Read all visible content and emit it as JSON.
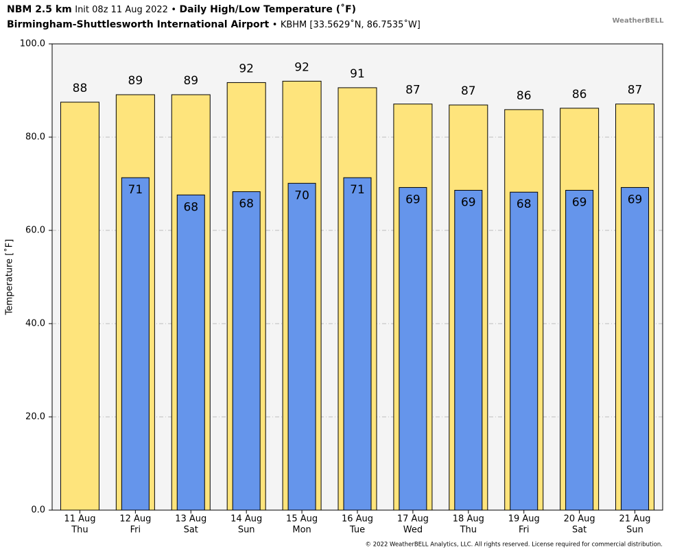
{
  "chart_data": {
    "type": "bar",
    "title_lines": [
      [
        {
          "text": "NBM 2.5 km",
          "bold": true
        },
        {
          "text": "Init 08z 11 Aug 2022",
          "bold": false
        },
        {
          "text": "•",
          "bold": false
        },
        {
          "text": "Daily High/Low Temperature (˚F)",
          "bold": true
        }
      ],
      [
        {
          "text": "Birmingham-Shuttlesworth International Airport",
          "bold": true
        },
        {
          "text": "•",
          "bold": false
        },
        {
          "text": "KBHM [33.5629˚N, 86.7535˚W]",
          "bold": false
        }
      ]
    ],
    "logo": "WeatherBELL",
    "y_label": "Temperature [˚F]",
    "footer": "© 2022 WeatherBELL Analytics, LLC. All rights reserved. License required for commercial distribution.",
    "categories": [
      [
        "11 Aug",
        "Thu"
      ],
      [
        "12 Aug",
        "Fri"
      ],
      [
        "13 Aug",
        "Sat"
      ],
      [
        "14 Aug",
        "Sun"
      ],
      [
        "15 Aug",
        "Mon"
      ],
      [
        "16 Aug",
        "Tue"
      ],
      [
        "17 Aug",
        "Wed"
      ],
      [
        "18 Aug",
        "Thu"
      ],
      [
        "19 Aug",
        "Fri"
      ],
      [
        "20 Aug",
        "Sat"
      ],
      [
        "21 Aug",
        "Sun"
      ]
    ],
    "series": [
      {
        "name": "High",
        "color": "#fee47c",
        "values": [
          87.5,
          89.1,
          89.1,
          91.7,
          92.0,
          90.6,
          87.1,
          86.9,
          85.9,
          86.2,
          87.1
        ],
        "value_labels": [
          "88",
          "89",
          "89",
          "92",
          "92",
          "91",
          "87",
          "87",
          "86",
          "86",
          "87"
        ]
      },
      {
        "name": "Low",
        "color": "#6595eb",
        "values": [
          null,
          71.3,
          67.6,
          68.3,
          70.1,
          71.3,
          69.2,
          68.6,
          68.2,
          68.6,
          69.2
        ],
        "value_labels": [
          null,
          "71",
          "68",
          "68",
          "70",
          "71",
          "69",
          "69",
          "68",
          "69",
          "69"
        ]
      }
    ],
    "ylim": [
      0,
      100
    ],
    "yticks": [
      {
        "value": 0,
        "label": "0.0"
      },
      {
        "value": 20,
        "label": "20.0"
      },
      {
        "value": 40,
        "label": "40.0"
      },
      {
        "value": 60,
        "label": "60.0"
      },
      {
        "value": 80,
        "label": "80.0"
      },
      {
        "value": 100,
        "label": "100.0"
      }
    ],
    "grid": true
  }
}
